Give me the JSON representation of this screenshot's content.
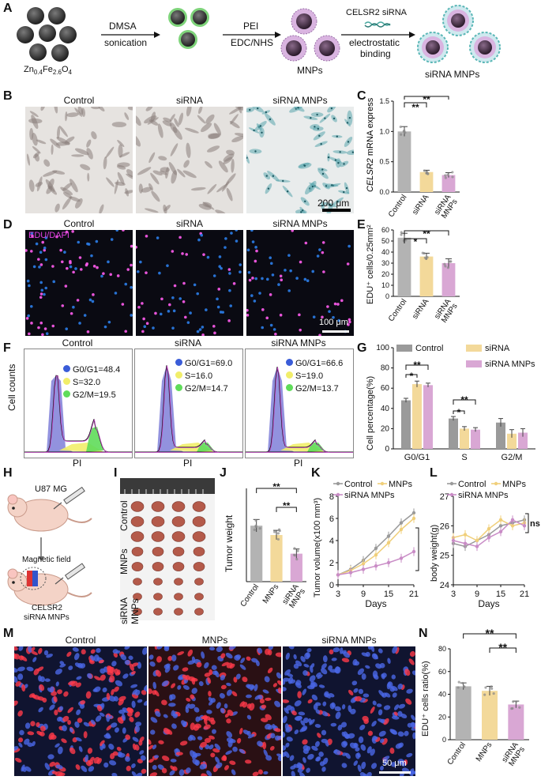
{
  "panels": {
    "A": {
      "label": "A",
      "core_formula_main": "Zn",
      "core_formula_parts": [
        "Zn",
        "0.4",
        "Fe",
        "2.6",
        "O",
        "4"
      ],
      "step1": [
        "DMSA",
        "sonication"
      ],
      "step2": [
        "PEI",
        "EDC/NHS"
      ],
      "mnps_label": "MNPs",
      "step3": [
        "CELSR2 siRNA",
        "electrostatic",
        "binding"
      ],
      "sirna_mnps_label": "siRNA MNPs"
    },
    "B": {
      "label": "B",
      "titles": [
        "Control",
        "siRNA",
        "siRNA MNPs"
      ],
      "scale": "200 μm"
    },
    "C": {
      "label": "C",
      "chart_data": {
        "type": "bar",
        "categories": [
          "Control",
          "siRNA",
          "siRNA MNPs"
        ],
        "values": [
          1.0,
          0.33,
          0.28
        ],
        "errors": [
          0.08,
          0.03,
          0.04
        ],
        "ylabel_italic": "CELSR2",
        "ylabel_rest": " mRNA express",
        "ylim": [
          0,
          1.5
        ],
        "ticks": [
          "0.0",
          "0.5",
          "1.0",
          "1.5"
        ],
        "sig": [
          "**",
          "**"
        ],
        "colors": [
          "#b3b3b3",
          "#f3d99a",
          "#d9a7d4"
        ]
      }
    },
    "D": {
      "label": "D",
      "titles": [
        "Control",
        "siRNA",
        "siRNA MNPs"
      ],
      "stain": "EDU/DAPI",
      "scale": "100 μm"
    },
    "E": {
      "label": "E",
      "chart_data": {
        "type": "bar",
        "categories": [
          "Control",
          "siRNA",
          "siRNA MNPs"
        ],
        "values": [
          53,
          36,
          30
        ],
        "errors": [
          4,
          3,
          4
        ],
        "ylabel": "EDU⁺ cells/0.25mm²",
        "ylim": [
          0,
          60
        ],
        "ticks": [
          "0",
          "10",
          "20",
          "30",
          "40",
          "50",
          "60"
        ],
        "sig": [
          "*",
          "**"
        ],
        "colors": [
          "#b3b3b3",
          "#f3d99a",
          "#d9a7d4"
        ]
      }
    },
    "F": {
      "label": "F",
      "titles": [
        "Control",
        "siRNA",
        "siRNA MNPs"
      ],
      "ylabel": "Cell counts",
      "xlabel": "PI",
      "legends": [
        [
          "G0/G1=48.4",
          "S=32.0",
          "G2/M=19.5"
        ],
        [
          "G0/G1=69.0",
          "S=16.0",
          "G2/M=14.7"
        ],
        [
          "G0/G1=66.6",
          "S=19.0",
          "G2/M=13.7"
        ]
      ]
    },
    "G": {
      "label": "G",
      "chart_data": {
        "type": "bar",
        "categories": [
          "G0/G1",
          "S",
          "G2/M"
        ],
        "series": [
          {
            "name": "Control",
            "values": [
              48,
              30,
              26
            ],
            "errors": [
              2,
              2,
              4
            ],
            "color": "#9a9a9a"
          },
          {
            "name": "siRNA",
            "values": [
              64,
              20,
              15
            ],
            "errors": [
              3,
              2,
              4
            ],
            "color": "#f3d99a"
          },
          {
            "name": "siRNA MNPs",
            "values": [
              63,
              19,
              16
            ],
            "errors": [
              2,
              2,
              4
            ],
            "color": "#d9a7d4"
          }
        ],
        "ylabel": "Cell percentage(%)",
        "ylim": [
          0,
          100
        ],
        "ticks": [
          "0",
          "20",
          "40",
          "60",
          "80",
          "100"
        ],
        "sig": [
          "*",
          "**",
          "*",
          "**"
        ]
      }
    },
    "H": {
      "label": "H",
      "cell_line": "U87 MG",
      "field": "Magnetic field",
      "injection": [
        "CELSR2",
        "siRNA MNPs"
      ]
    },
    "I": {
      "label": "I",
      "rows": [
        "Control",
        "MNPs",
        "siRNA MNPs"
      ]
    },
    "J": {
      "label": "J",
      "chart_data": {
        "type": "bar",
        "categories": [
          "Control",
          "MNPs",
          "siRNA MNPs"
        ],
        "values": [
          0.36,
          0.3,
          0.18
        ],
        "errors": [
          0.04,
          0.03,
          0.03
        ],
        "ylabel": "Tumor weight",
        "ylim": [
          0,
          0.6
        ],
        "sig": [
          "**",
          "**"
        ],
        "colors": [
          "#b3b3b3",
          "#f3d99a",
          "#d9a7d4"
        ]
      }
    },
    "K": {
      "label": "K",
      "chart_data": {
        "type": "line",
        "x": [
          3,
          6,
          9,
          12,
          15,
          18,
          21
        ],
        "series": [
          {
            "name": "Control",
            "values": [
              0.9,
              1.4,
              2.2,
              3.3,
              4.4,
              5.6,
              6.5
            ],
            "color": "#9a9a9a"
          },
          {
            "name": "MNPs",
            "values": [
              0.9,
              1.3,
              1.9,
              2.7,
              3.8,
              5.0,
              6.0
            ],
            "color": "#f0cf7a"
          },
          {
            "name": "siRNA MNPs",
            "values": [
              0.9,
              1.1,
              1.4,
              1.7,
              2.0,
              2.4,
              3.0
            ],
            "color": "#c98cc6"
          }
        ],
        "xlabel": "Days",
        "ylabel": "Tumor volume(x100 mm³)",
        "ylim": [
          0,
          8
        ],
        "yticks": [
          "0",
          "2",
          "4",
          "6",
          "8"
        ],
        "xticks": [
          "3",
          "9",
          "15",
          "21"
        ],
        "sig": "**"
      }
    },
    "L": {
      "label": "L",
      "chart_data": {
        "type": "line",
        "x": [
          3,
          6,
          9,
          12,
          15,
          18,
          21
        ],
        "series": [
          {
            "name": "Control",
            "values": [
              25.4,
              25.3,
              25.5,
              25.7,
              26.0,
              26.1,
              26.2
            ],
            "color": "#9a9a9a"
          },
          {
            "name": "MNPs",
            "values": [
              25.6,
              25.7,
              25.5,
              25.9,
              26.2,
              26.0,
              26.1
            ],
            "color": "#f0cf7a"
          },
          {
            "name": "siRNA MNPs",
            "values": [
              25.5,
              25.4,
              25.3,
              25.6,
              25.8,
              26.2,
              26.0
            ],
            "color": "#c98cc6"
          }
        ],
        "xlabel": "Days",
        "ylabel": "body weight(g)",
        "ylim": [
          24,
          27
        ],
        "yticks": [
          "24",
          "25",
          "26",
          "27"
        ],
        "xticks": [
          "3",
          "9",
          "15",
          "21"
        ],
        "sig": "ns"
      }
    },
    "M": {
      "label": "M",
      "titles": [
        "Control",
        "MNPs",
        "siRNA MNPs"
      ],
      "scale": "50 μm"
    },
    "N": {
      "label": "N",
      "chart_data": {
        "type": "bar",
        "categories": [
          "Control",
          "MNPs",
          "siRNA MNPs"
        ],
        "values": [
          47,
          43,
          31
        ],
        "errors": [
          3,
          4,
          3
        ],
        "ylabel": "EDU⁺ cells ratio(%)",
        "ylim": [
          0,
          80
        ],
        "ticks": [
          "0",
          "20",
          "40",
          "60",
          "80"
        ],
        "sig": [
          "**",
          "**"
        ],
        "colors": [
          "#b3b3b3",
          "#f3d99a",
          "#d9a7d4"
        ]
      }
    }
  }
}
